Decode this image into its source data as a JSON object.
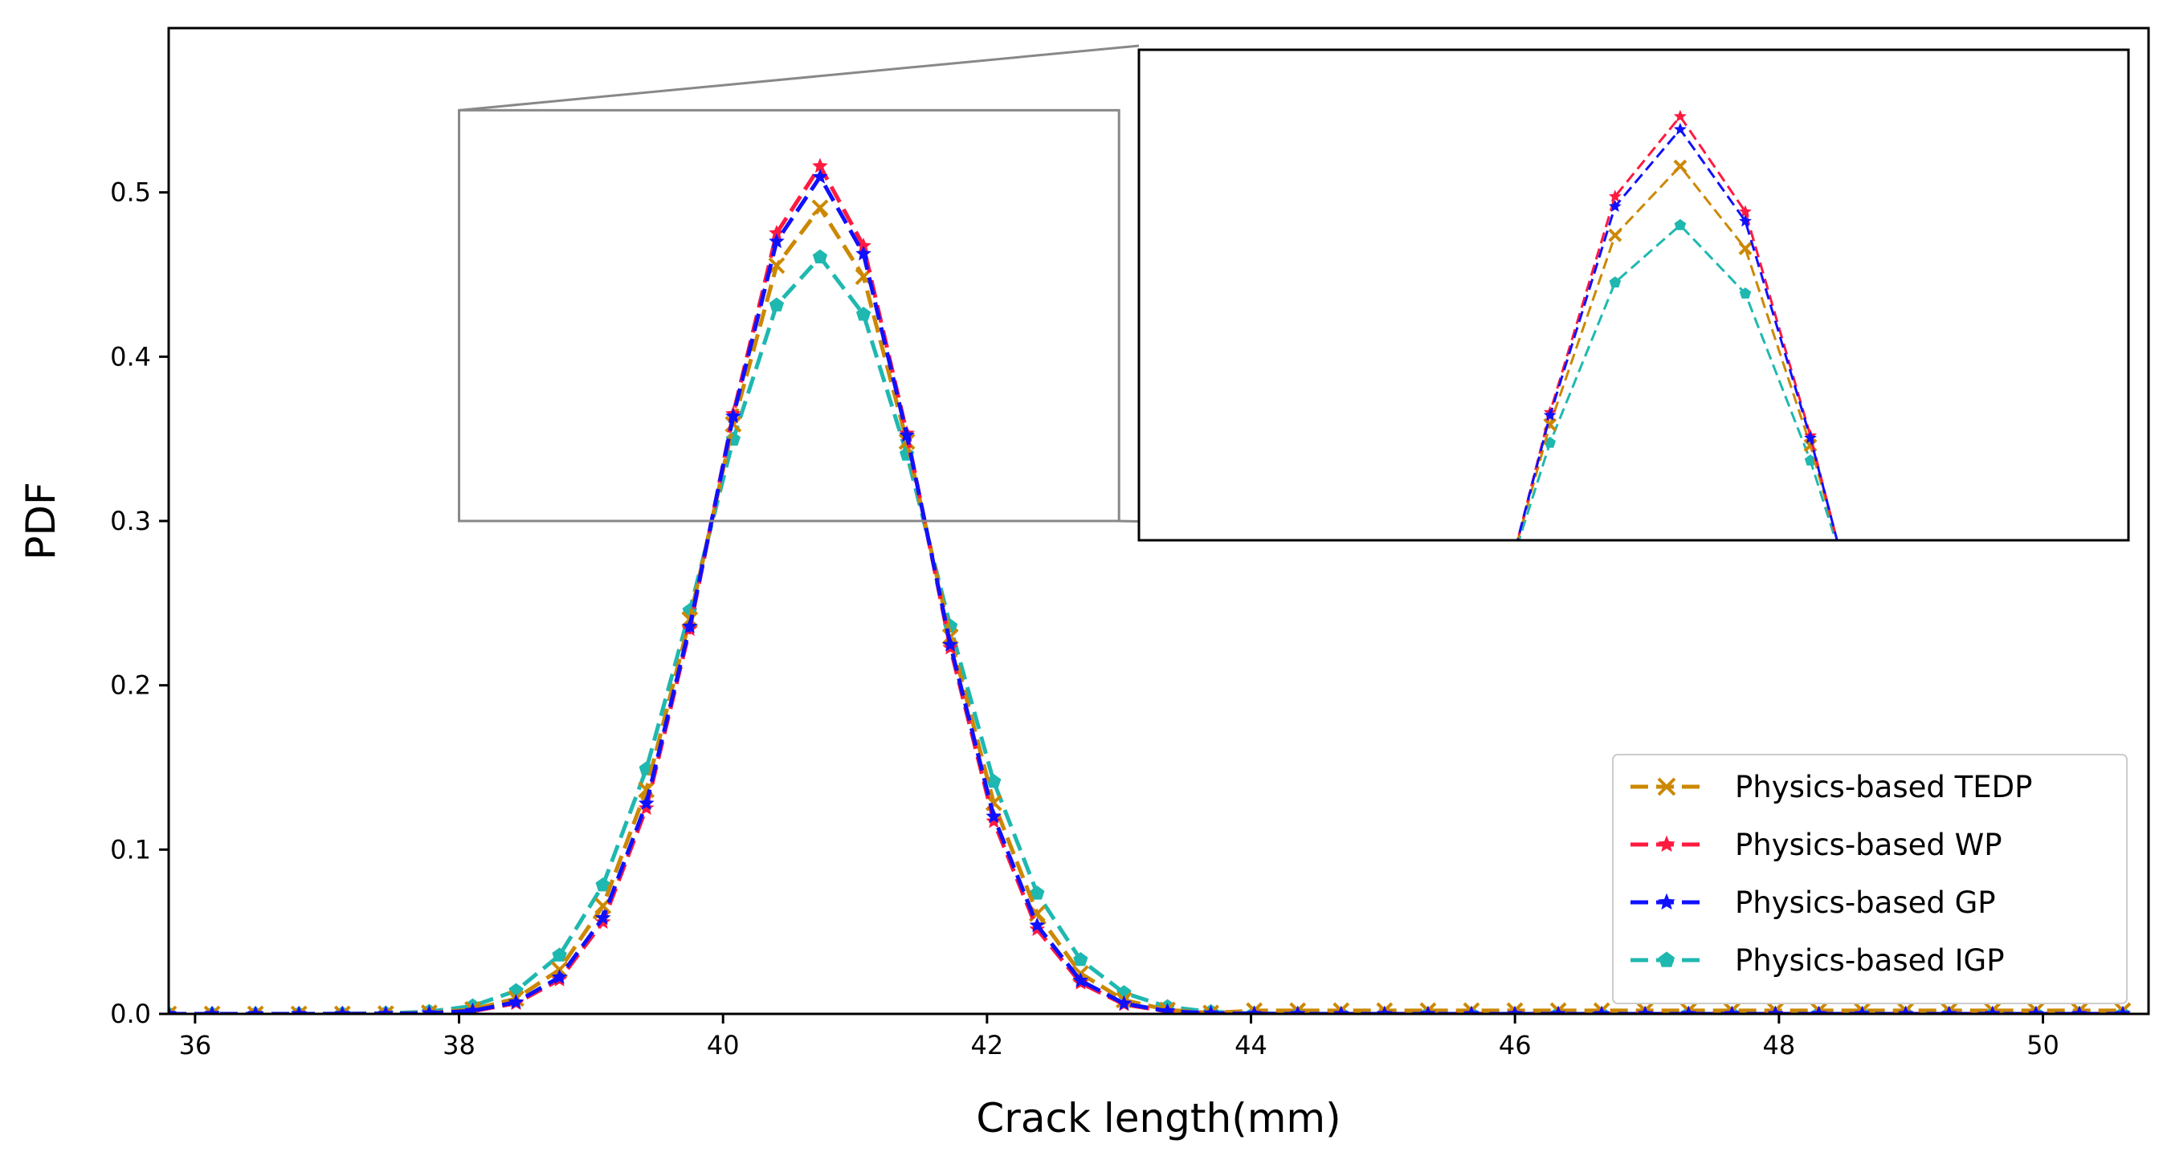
{
  "chart_data": {
    "type": "line",
    "title": "",
    "xlabel": "Crack length(mm)",
    "ylabel": "PDF",
    "xlim": [
      35.8,
      50.8
    ],
    "ylim": [
      0,
      0.6
    ],
    "x_ticks": [
      36,
      38,
      40,
      42,
      44,
      46,
      48,
      50
    ],
    "y_ticks": [
      0.0,
      0.1,
      0.2,
      0.3,
      0.4,
      0.5
    ],
    "x_tick_labels": [
      "36",
      "38",
      "40",
      "42",
      "44",
      "46",
      "48",
      "50"
    ],
    "y_tick_labels": [
      "0.0",
      "0.1",
      "0.2",
      "0.3",
      "0.4",
      "0.5"
    ],
    "grid": false,
    "legend_position": "bottom-right",
    "inset": {
      "xlim": [
        38,
        43
      ],
      "ylim": [
        0.3,
        0.55
      ],
      "description": "zoomed view of the peak region"
    },
    "series": [
      {
        "name": "Physics-based TEDP",
        "color": "#cc8800",
        "marker": "x",
        "peak_mean": 40.72,
        "peak_sd": 0.813,
        "tail": 0.002
      },
      {
        "name": "Physics-based WP",
        "color": "#ff1a40",
        "marker": "star",
        "peak_mean": 40.72,
        "peak_sd": 0.773,
        "tail": 0.0
      },
      {
        "name": "Physics-based GP",
        "color": "#1010ff",
        "marker": "star",
        "peak_mean": 40.72,
        "peak_sd": 0.783,
        "tail": 0.0
      },
      {
        "name": "Physics-based IGP",
        "color": "#1fb8b0",
        "marker": "pentagon",
        "peak_mean": 40.72,
        "peak_sd": 0.866,
        "tail": 0.0
      }
    ]
  }
}
